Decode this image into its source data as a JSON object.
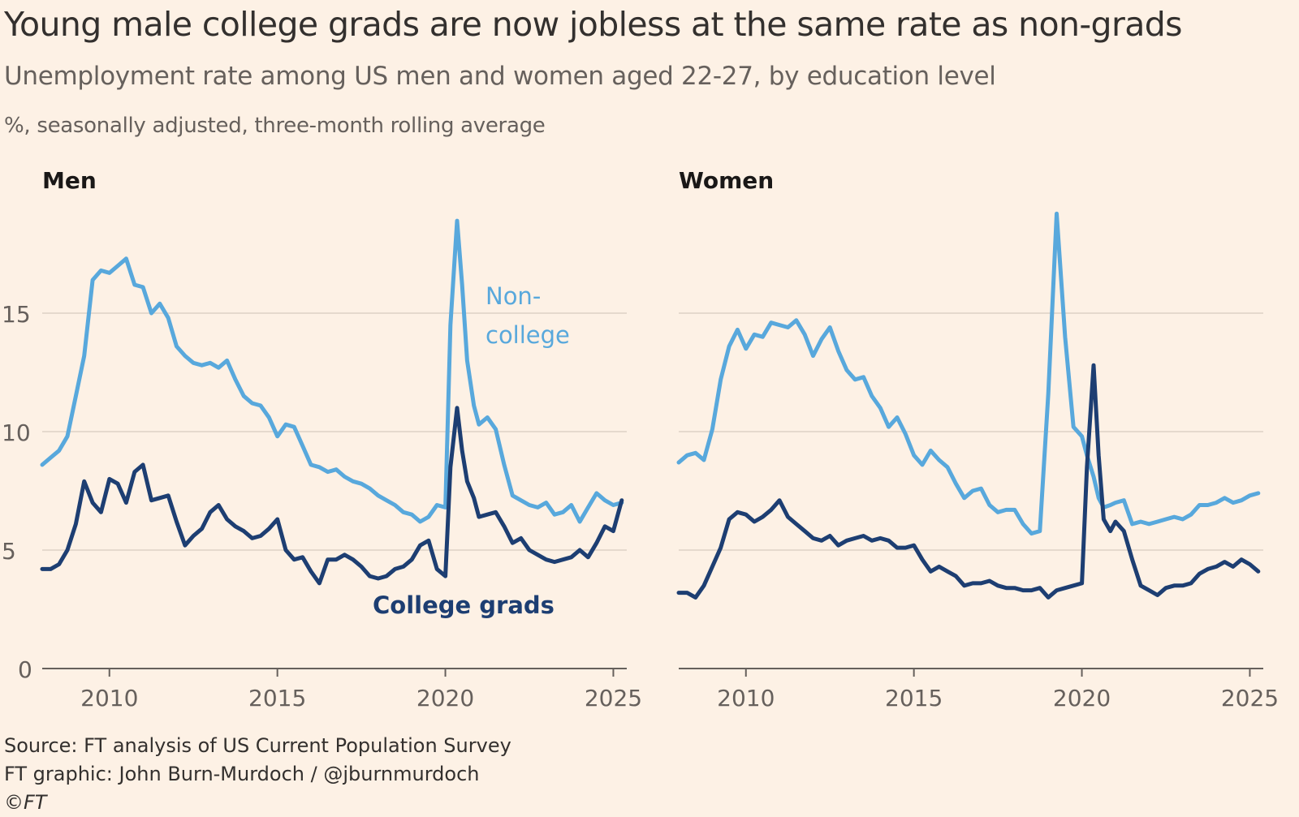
{
  "title": "Young male college grads are now jobless at the same rate as non-grads",
  "subtitle": "Unemployment rate among US men and women aged 22-27, by education level",
  "units": "%, seasonally adjusted, three-month rolling average",
  "footer": {
    "source": "Source: FT analysis of US Current Population Survey",
    "graphic": "FT graphic: John Burn-Murdoch / @jburnmurdoch",
    "copyright": "©FT"
  },
  "colors": {
    "background": "#fdf1e5",
    "non_college": "#58a8dc",
    "college": "#1d3e72",
    "grid": "#e5d9cd",
    "axis": "#66605c"
  },
  "chart_data": [
    {
      "type": "line",
      "panel": "Men",
      "x_ticks": [
        2010,
        2015,
        2020,
        2025
      ],
      "y_ticks": [
        0,
        5,
        10,
        15
      ],
      "xlim": [
        2008,
        2025.4
      ],
      "ylim": [
        0,
        19
      ],
      "grid": true,
      "series": [
        {
          "name": "Non-college",
          "label": [
            "Non-",
            "college"
          ],
          "role": "non_college",
          "x": [
            2008.0,
            2008.25,
            2008.5,
            2008.75,
            2009.0,
            2009.25,
            2009.5,
            2009.75,
            2010.0,
            2010.25,
            2010.5,
            2010.75,
            2011.0,
            2011.25,
            2011.5,
            2011.75,
            2012.0,
            2012.25,
            2012.5,
            2012.75,
            2013.0,
            2013.25,
            2013.5,
            2013.75,
            2014.0,
            2014.25,
            2014.5,
            2014.75,
            2015.0,
            2015.25,
            2015.5,
            2015.75,
            2016.0,
            2016.25,
            2016.5,
            2016.75,
            2017.0,
            2017.25,
            2017.5,
            2017.75,
            2018.0,
            2018.25,
            2018.5,
            2018.75,
            2019.0,
            2019.25,
            2019.5,
            2019.75,
            2020.0,
            2020.15,
            2020.35,
            2020.5,
            2020.65,
            2020.85,
            2021.0,
            2021.25,
            2021.5,
            2021.75,
            2022.0,
            2022.25,
            2022.5,
            2022.75,
            2023.0,
            2023.25,
            2023.5,
            2023.75,
            2024.0,
            2024.25,
            2024.5,
            2024.75,
            2025.0,
            2025.25
          ],
          "values": [
            8.6,
            8.9,
            9.2,
            9.8,
            11.5,
            13.2,
            16.4,
            16.8,
            16.7,
            17.0,
            17.3,
            16.2,
            16.1,
            15.0,
            15.4,
            14.8,
            13.6,
            13.2,
            12.9,
            12.8,
            12.9,
            12.7,
            13.0,
            12.2,
            11.5,
            11.2,
            11.1,
            10.6,
            9.8,
            10.3,
            10.2,
            9.4,
            8.6,
            8.5,
            8.3,
            8.4,
            8.1,
            7.9,
            7.8,
            7.6,
            7.3,
            7.1,
            6.9,
            6.6,
            6.5,
            6.2,
            6.4,
            6.9,
            6.8,
            14.5,
            18.9,
            16.2,
            13.0,
            11.1,
            10.3,
            10.6,
            10.1,
            8.6,
            7.3,
            7.1,
            6.9,
            6.8,
            7.0,
            6.5,
            6.6,
            6.9,
            6.2,
            6.8,
            7.4,
            7.1,
            6.9,
            7.0
          ]
        },
        {
          "name": "College grads",
          "label": [
            "College grads"
          ],
          "role": "college",
          "x": [
            2008.0,
            2008.25,
            2008.5,
            2008.75,
            2009.0,
            2009.25,
            2009.5,
            2009.75,
            2010.0,
            2010.25,
            2010.5,
            2010.75,
            2011.0,
            2011.25,
            2011.5,
            2011.75,
            2012.0,
            2012.25,
            2012.5,
            2012.75,
            2013.0,
            2013.25,
            2013.5,
            2013.75,
            2014.0,
            2014.25,
            2014.5,
            2014.75,
            2015.0,
            2015.25,
            2015.5,
            2015.75,
            2016.0,
            2016.25,
            2016.5,
            2016.75,
            2017.0,
            2017.25,
            2017.5,
            2017.75,
            2018.0,
            2018.25,
            2018.5,
            2018.75,
            2019.0,
            2019.25,
            2019.5,
            2019.75,
            2020.0,
            2020.15,
            2020.35,
            2020.5,
            2020.65,
            2020.85,
            2021.0,
            2021.25,
            2021.5,
            2021.75,
            2022.0,
            2022.25,
            2022.5,
            2022.75,
            2023.0,
            2023.25,
            2023.5,
            2023.75,
            2024.0,
            2024.25,
            2024.5,
            2024.75,
            2025.0,
            2025.25
          ],
          "values": [
            4.2,
            4.2,
            4.4,
            5.0,
            6.1,
            7.9,
            7.0,
            6.6,
            8.0,
            7.8,
            7.0,
            8.3,
            8.6,
            7.1,
            7.2,
            7.3,
            6.2,
            5.2,
            5.6,
            5.9,
            6.6,
            6.9,
            6.3,
            6.0,
            5.8,
            5.5,
            5.6,
            5.9,
            6.3,
            5.0,
            4.6,
            4.7,
            4.1,
            3.6,
            4.6,
            4.6,
            4.8,
            4.6,
            4.3,
            3.9,
            3.8,
            3.9,
            4.2,
            4.3,
            4.6,
            5.2,
            5.4,
            4.2,
            3.9,
            8.5,
            11.0,
            9.2,
            7.9,
            7.2,
            6.4,
            6.5,
            6.6,
            6.0,
            5.3,
            5.5,
            5.0,
            4.8,
            4.6,
            4.5,
            4.6,
            4.7,
            5.0,
            4.7,
            5.3,
            6.0,
            5.8,
            7.1
          ]
        }
      ]
    },
    {
      "type": "line",
      "panel": "Women",
      "x_ticks": [
        2010,
        2015,
        2020,
        2025
      ],
      "y_ticks": [
        0,
        5,
        10,
        15
      ],
      "xlim": [
        2008,
        2025.4
      ],
      "ylim": [
        0,
        19
      ],
      "grid": true,
      "series": [
        {
          "name": "Non-college",
          "role": "non_college",
          "x": [
            2008.0,
            2008.25,
            2008.5,
            2008.75,
            2009.0,
            2009.25,
            2009.5,
            2009.75,
            2010.0,
            2010.25,
            2010.5,
            2010.75,
            2011.0,
            2011.25,
            2011.5,
            2011.75,
            2012.0,
            2012.25,
            2012.5,
            2012.75,
            2013.0,
            2013.25,
            2013.5,
            2013.75,
            2014.0,
            2014.25,
            2014.5,
            2014.75,
            2015.0,
            2015.25,
            2015.5,
            2015.75,
            2016.0,
            2016.25,
            2016.5,
            2016.75,
            2017.0,
            2017.25,
            2017.5,
            2017.75,
            2018.0,
            2018.25,
            2018.5,
            2018.75,
            2019.0,
            2019.25,
            2019.5,
            2019.75,
            2020.0,
            2020.15,
            2020.35,
            2020.5,
            2020.65,
            2020.85,
            2021.0,
            2021.25,
            2021.5,
            2021.75,
            2022.0,
            2022.25,
            2022.5,
            2022.75,
            2023.0,
            2023.25,
            2023.5,
            2023.75,
            2024.0,
            2024.25,
            2024.5,
            2024.75,
            2025.0,
            2025.25
          ],
          "values": [
            8.7,
            9.0,
            9.1,
            8.8,
            10.1,
            12.2,
            13.6,
            14.3,
            13.5,
            14.1,
            14.0,
            14.6,
            14.5,
            14.4,
            14.7,
            14.1,
            13.2,
            13.9,
            14.4,
            13.4,
            12.6,
            12.2,
            12.3,
            11.5,
            11.0,
            10.2,
            10.6,
            9.9,
            9.0,
            8.6,
            9.2,
            8.8,
            8.5,
            7.8,
            7.2,
            7.5,
            7.6,
            6.9,
            6.6,
            6.7,
            6.7,
            6.1,
            5.7,
            5.8,
            11.6,
            19.2,
            14.0,
            10.2,
            9.8,
            9.0,
            8.1,
            7.2,
            6.8,
            6.9,
            7.0,
            7.1,
            6.1,
            6.2,
            6.1,
            6.2,
            6.3,
            6.4,
            6.3,
            6.5,
            6.9,
            6.9,
            7.0,
            7.2,
            7.0,
            7.1,
            7.3,
            7.4
          ]
        },
        {
          "name": "College grads",
          "role": "college",
          "x": [
            2008.0,
            2008.25,
            2008.5,
            2008.75,
            2009.0,
            2009.25,
            2009.5,
            2009.75,
            2010.0,
            2010.25,
            2010.5,
            2010.75,
            2011.0,
            2011.25,
            2011.5,
            2011.75,
            2012.0,
            2012.25,
            2012.5,
            2012.75,
            2013.0,
            2013.25,
            2013.5,
            2013.75,
            2014.0,
            2014.25,
            2014.5,
            2014.75,
            2015.0,
            2015.25,
            2015.5,
            2015.75,
            2016.0,
            2016.25,
            2016.5,
            2016.75,
            2017.0,
            2017.25,
            2017.5,
            2017.75,
            2018.0,
            2018.25,
            2018.5,
            2018.75,
            2019.0,
            2019.25,
            2019.5,
            2019.75,
            2020.0,
            2020.15,
            2020.35,
            2020.5,
            2020.65,
            2020.85,
            2021.0,
            2021.25,
            2021.5,
            2021.75,
            2022.0,
            2022.25,
            2022.5,
            2022.75,
            2023.0,
            2023.25,
            2023.5,
            2023.75,
            2024.0,
            2024.25,
            2024.5,
            2024.75,
            2025.0,
            2025.25
          ],
          "values": [
            3.2,
            3.2,
            3.0,
            3.5,
            4.3,
            5.1,
            6.3,
            6.6,
            6.5,
            6.2,
            6.4,
            6.7,
            7.1,
            6.4,
            6.1,
            5.8,
            5.5,
            5.4,
            5.6,
            5.2,
            5.4,
            5.5,
            5.6,
            5.4,
            5.5,
            5.4,
            5.1,
            5.1,
            5.2,
            4.6,
            4.1,
            4.3,
            4.1,
            3.9,
            3.5,
            3.6,
            3.6,
            3.7,
            3.5,
            3.4,
            3.4,
            3.3,
            3.3,
            3.4,
            3.0,
            3.3,
            3.4,
            3.5,
            3.6,
            8.5,
            12.8,
            9.0,
            6.3,
            5.8,
            6.2,
            5.8,
            4.6,
            3.5,
            3.3,
            3.1,
            3.4,
            3.5,
            3.5,
            3.6,
            4.0,
            4.2,
            4.3,
            4.5,
            4.3,
            4.6,
            4.4,
            4.1
          ]
        }
      ]
    }
  ]
}
